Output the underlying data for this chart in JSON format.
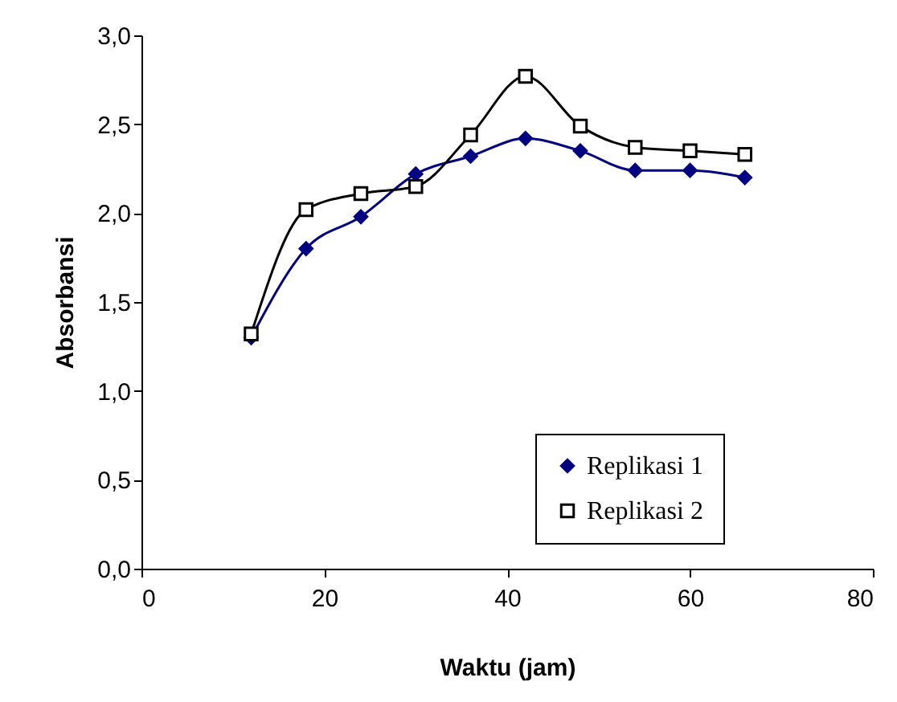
{
  "chart_data": {
    "type": "line",
    "xlabel": "Waktu (jam)",
    "ylabel": "Absorbansi",
    "x": [
      12,
      18,
      24,
      30,
      36,
      42,
      48,
      54,
      60,
      66
    ],
    "series": [
      {
        "name": "Replikasi 1",
        "color": "#000080",
        "marker": "diamond",
        "values": [
          1.3,
          1.8,
          1.98,
          2.22,
          2.32,
          2.42,
          2.35,
          2.24,
          2.24,
          2.2
        ]
      },
      {
        "name": "Replikasi 2",
        "color": "#000000",
        "marker": "square",
        "values": [
          1.32,
          2.02,
          2.11,
          2.15,
          2.44,
          2.77,
          2.49,
          2.37,
          2.35,
          2.33
        ]
      }
    ],
    "xlim": [
      0,
      80
    ],
    "xticks": [
      0,
      20,
      40,
      60,
      80
    ],
    "ylim": [
      0,
      3
    ],
    "yticks": [
      {
        "value": 0,
        "label": "0,0"
      },
      {
        "value": 0.5,
        "label": "0,5"
      },
      {
        "value": 1,
        "label": "1,0"
      },
      {
        "value": 1.5,
        "label": "1,5"
      },
      {
        "value": 2,
        "label": "2,0"
      },
      {
        "value": 2.5,
        "label": "2,5"
      },
      {
        "value": 3,
        "label": "3,0"
      }
    ],
    "grid": false,
    "legend": "bottom right",
    "line_style": "solid"
  }
}
